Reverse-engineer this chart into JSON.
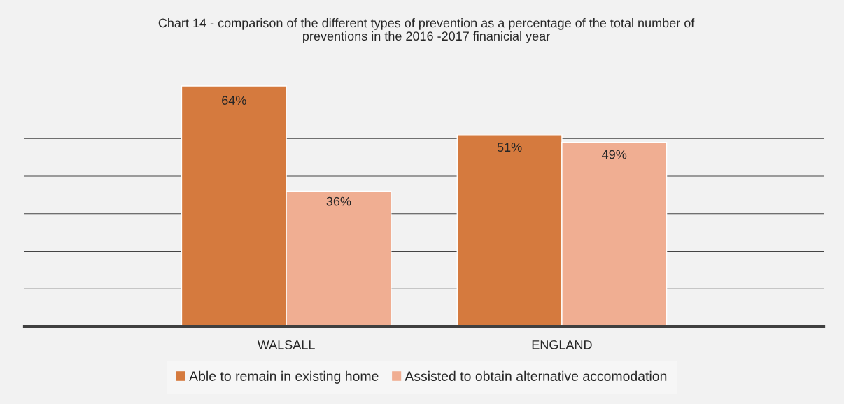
{
  "chart_data": {
    "type": "bar",
    "title": "Chart 14 - comparison of the different types of prevention as a percentage of the total number of\npreventions in the 2016 -2017 finanicial year",
    "categories": [
      "WALSALL",
      "ENGLAND"
    ],
    "series": [
      {
        "name": "Able to remain in existing home",
        "color": "#d57a3e",
        "values": [
          64,
          51
        ],
        "value_labels": [
          "64%",
          "51%"
        ]
      },
      {
        "name": "Assisted to obtain alternative accomodation",
        "color": "#f0ae92",
        "values": [
          36,
          49
        ],
        "value_labels": [
          "36%",
          "49%"
        ]
      }
    ],
    "tick_labels": "x",
    "grid": "y",
    "legend": "bottom"
  }
}
